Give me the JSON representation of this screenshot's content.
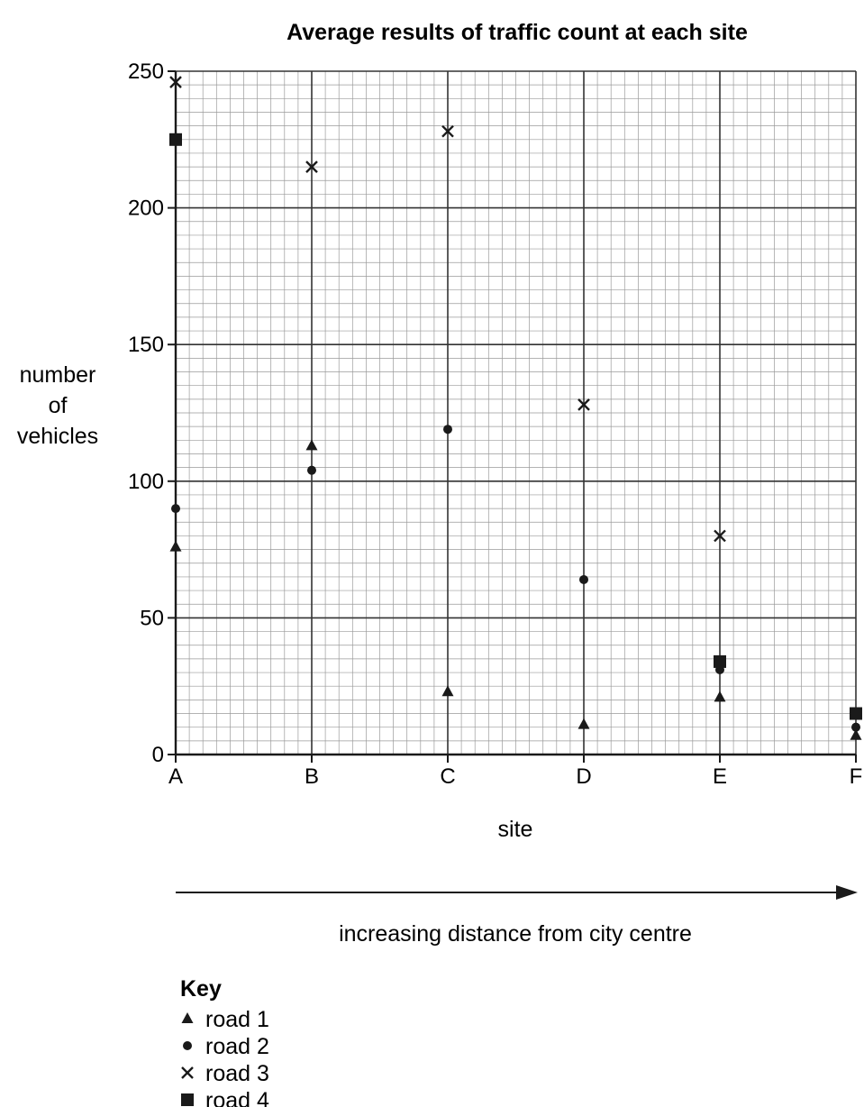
{
  "chart_data": {
    "type": "scatter",
    "title": "Average results of traffic count at each site",
    "xlabel": "site",
    "ylabel": [
      "number",
      "of",
      "vehicles"
    ],
    "annotation": "increasing distance from city centre",
    "categories": [
      "A",
      "B",
      "C",
      "D",
      "E",
      "F"
    ],
    "ylim": [
      0,
      250
    ],
    "yticks": [
      0,
      50,
      100,
      150,
      200,
      250
    ],
    "grid": true,
    "legend_title": "Key",
    "legend_position": "bottom-left",
    "series": [
      {
        "name": "road 1",
        "marker": "triangle",
        "values": [
          76,
          113,
          23,
          11,
          21,
          7
        ]
      },
      {
        "name": "road 2",
        "marker": "circle",
        "values": [
          90,
          104,
          119,
          64,
          31,
          10
        ]
      },
      {
        "name": "road 3",
        "marker": "cross",
        "values": [
          246,
          215,
          228,
          128,
          80,
          null
        ]
      },
      {
        "name": "road 4",
        "marker": "square",
        "values": [
          225,
          null,
          null,
          null,
          34,
          15
        ]
      }
    ]
  }
}
